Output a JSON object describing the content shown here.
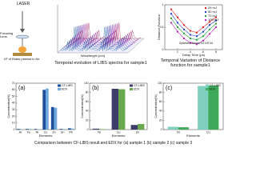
{
  "diagram": {
    "laser": "LASER",
    "lens": "Focusing Lens",
    "plasma": "LP of Brass plasma in Air"
  },
  "chart_data": [
    {
      "type": "spectra",
      "title": "Temporal evolution of LIBS spectra for sample1",
      "x_label": "Wavelength (nm)"
    },
    {
      "type": "line",
      "title": "Temporal Variation of Distance function for sample1",
      "x_label": "Delay Time (μs)",
      "y_label": "Distance Function",
      "annotation": "Optimized Window for 100 mJ",
      "x": [
        1,
        2,
        3,
        4,
        5,
        6,
        7,
        8
      ],
      "xlim": [
        0,
        9
      ],
      "xticks": [
        2,
        4,
        6,
        8
      ],
      "ylim": [
        0,
        1
      ],
      "yticks": [
        0,
        0.5,
        1
      ],
      "series": [
        {
          "name": "25 mJ",
          "color": "#e02020",
          "values": [
            0.9,
            0.72,
            0.55,
            0.42,
            0.38,
            0.5,
            0.62,
            0.72
          ]
        },
        {
          "name": "50 mJ",
          "color": "#2040d0",
          "values": [
            0.8,
            0.6,
            0.45,
            0.33,
            0.3,
            0.4,
            0.55,
            0.65
          ]
        },
        {
          "name": "70 mJ",
          "color": "#20a040",
          "values": [
            0.7,
            0.5,
            0.36,
            0.25,
            0.22,
            0.3,
            0.45,
            0.58
          ]
        },
        {
          "name": "100 mJ",
          "color": "#c020c0",
          "values": [
            0.6,
            0.4,
            0.25,
            0.15,
            0.12,
            0.2,
            0.35,
            0.5
          ]
        }
      ]
    },
    {
      "type": "bar",
      "label": "(a)",
      "x_label": "Elements",
      "y_label": "Concentration(%)",
      "categories": [
        "Al",
        "Fe",
        "Ni",
        "Cu",
        "Zn",
        "Sn",
        "Pb"
      ],
      "ylim": [
        0,
        70
      ],
      "yticks": [
        0,
        10,
        20,
        30,
        40,
        50,
        60,
        70
      ],
      "series": [
        {
          "name": "CF-LIBS",
          "color": "#1f4e9c",
          "values": [
            1,
            1,
            1,
            60,
            34,
            1,
            2
          ]
        },
        {
          "name": "EDX",
          "color": "#6fa8dc",
          "values": [
            0.5,
            0.8,
            0.5,
            62,
            33,
            0.8,
            1.5
          ]
        }
      ]
    },
    {
      "type": "bar",
      "label": "(b)",
      "x_label": "Elements",
      "y_label": "Concentration(%)",
      "categories": [
        "Ni",
        "Cu",
        "Zn"
      ],
      "ylim": [
        0,
        100
      ],
      "yticks": [
        0,
        20,
        40,
        60,
        80,
        100
      ],
      "series": [
        {
          "name": "CF-LIBS",
          "color": "#3d3d6b",
          "values": [
            2,
            88,
            10
          ]
        },
        {
          "name": "EDX",
          "color": "#6aa84f",
          "values": [
            1,
            87,
            12
          ]
        }
      ]
    },
    {
      "type": "bar",
      "label": "(c)",
      "x_label": "Elements",
      "y_label": "Concentration(%)",
      "categories": [
        "Ni",
        "Cu"
      ],
      "ylim": [
        0,
        100
      ],
      "yticks": [
        0,
        20,
        40,
        60,
        80,
        100
      ],
      "series": [
        {
          "name": "CF-LIBS",
          "color": "#7ecfc0",
          "values": [
            6,
            94
          ]
        },
        {
          "name": "EDX",
          "color": "#3caa5a",
          "values": [
            5,
            95
          ]
        }
      ]
    }
  ],
  "caption": "Comparison between CF-LIBS result and EDX for (a) sample 1 (b) sample 2 (c) sample 3"
}
